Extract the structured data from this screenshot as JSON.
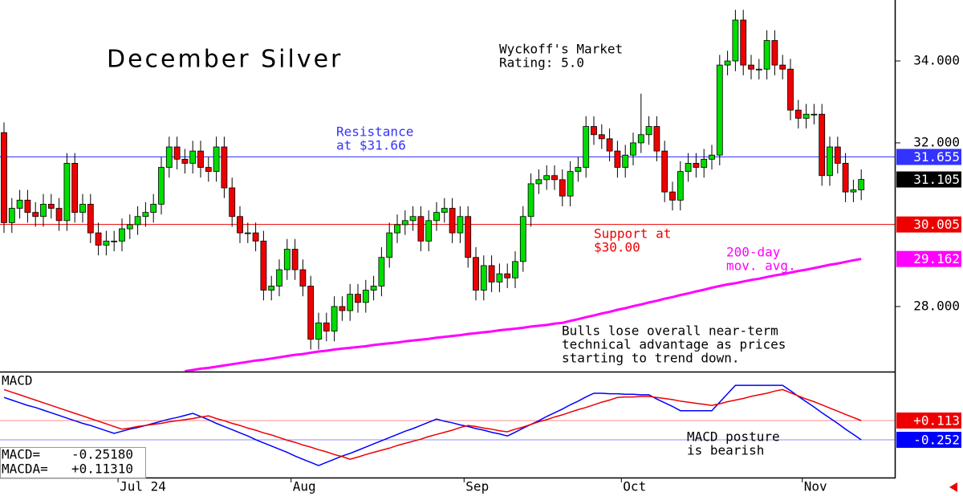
{
  "chart_data": [
    {
      "type": "candlestick",
      "title": "December Silver",
      "subtitle": [
        "Wyckoff's Market",
        "Rating: 5.0"
      ],
      "categories": [
        null,
        null,
        null,
        null,
        null,
        null,
        null,
        null,
        null,
        null,
        null,
        null,
        null,
        null,
        null,
        "Jul 24",
        null,
        null,
        null,
        null,
        null,
        null,
        null,
        null,
        null,
        null,
        null,
        null,
        null,
        null,
        null,
        null,
        null,
        null,
        null,
        null,
        null,
        "Aug",
        null,
        null,
        null,
        null,
        null,
        null,
        null,
        null,
        null,
        null,
        null,
        null,
        null,
        null,
        null,
        null,
        null,
        null,
        null,
        null,
        null,
        "Sep",
        null,
        null,
        null,
        null,
        null,
        null,
        null,
        null,
        null,
        null,
        null,
        null,
        null,
        null,
        null,
        null,
        null,
        null,
        null,
        "Oct",
        null,
        null,
        null,
        null,
        null,
        null,
        null,
        null,
        null,
        null,
        null,
        null,
        null,
        null,
        null,
        null,
        null,
        null,
        null,
        null,
        null,
        null,
        "Nov",
        null,
        null,
        null,
        null,
        null,
        null,
        null
      ],
      "open": [
        32.25,
        30.05,
        30.4,
        30.6,
        30.3,
        30.2,
        30.5,
        30.4,
        30.1,
        31.5,
        30.3,
        30.5,
        29.8,
        29.5,
        29.6,
        29.6,
        29.9,
        30.0,
        30.2,
        30.3,
        30.5,
        31.4,
        31.9,
        31.6,
        31.5,
        31.8,
        31.4,
        31.3,
        31.9,
        30.9,
        30.2,
        29.8,
        29.8,
        29.6,
        28.4,
        28.5,
        28.9,
        29.4,
        28.9,
        28.5,
        27.2,
        27.6,
        27.4,
        28.0,
        27.9,
        28.3,
        28.1,
        28.4,
        28.5,
        29.2,
        29.8,
        30.0,
        30.1,
        30.2,
        29.6,
        30.1,
        30.3,
        30.4,
        29.8,
        30.2,
        29.2,
        28.4,
        29.0,
        28.6,
        28.8,
        28.7,
        29.1,
        30.2,
        31.0,
        31.1,
        31.2,
        31.1,
        30.7,
        31.3,
        31.4,
        32.4,
        32.2,
        32.1,
        31.8,
        31.4,
        31.7,
        32.0,
        32.2,
        32.4,
        31.8,
        30.8,
        30.6,
        31.3,
        31.5,
        31.4,
        31.6,
        31.7,
        33.9,
        34.0,
        35.0,
        33.9,
        33.8,
        33.8,
        34.5,
        33.9,
        33.8,
        32.8,
        32.6,
        32.7,
        32.7,
        31.2,
        31.9,
        31.5,
        30.8,
        30.85
      ],
      "high": [
        32.5,
        30.65,
        30.85,
        30.85,
        30.55,
        30.75,
        30.75,
        30.65,
        31.75,
        31.75,
        30.75,
        30.75,
        30.05,
        29.85,
        29.85,
        30.15,
        30.25,
        30.45,
        30.55,
        30.75,
        31.65,
        32.15,
        32.15,
        31.85,
        32.05,
        32.05,
        31.65,
        32.15,
        32.15,
        31.15,
        30.45,
        30.05,
        30.05,
        29.85,
        28.75,
        29.15,
        29.65,
        29.65,
        29.15,
        28.75,
        27.85,
        27.85,
        28.25,
        28.25,
        28.55,
        28.55,
        28.65,
        28.75,
        29.45,
        30.05,
        30.25,
        30.35,
        30.45,
        30.45,
        30.35,
        30.55,
        30.65,
        30.65,
        30.45,
        30.45,
        29.45,
        29.25,
        29.25,
        29.05,
        29.05,
        29.35,
        30.45,
        31.25,
        31.35,
        31.45,
        31.45,
        31.35,
        31.55,
        31.65,
        32.65,
        32.65,
        32.45,
        32.35,
        32.05,
        31.95,
        32.25,
        33.2,
        32.65,
        32.65,
        32.05,
        31.05,
        31.55,
        31.75,
        31.75,
        31.85,
        31.95,
        34.15,
        34.25,
        35.25,
        35.25,
        34.15,
        34.05,
        34.75,
        34.75,
        34.15,
        34.05,
        33.05,
        32.95,
        32.95,
        32.95,
        32.15,
        32.15,
        31.75,
        31.1,
        31.35
      ],
      "low": [
        29.8,
        29.8,
        30.15,
        30.05,
        29.95,
        29.95,
        30.15,
        29.85,
        29.85,
        30.05,
        30.05,
        29.55,
        29.25,
        29.25,
        29.35,
        29.35,
        29.65,
        29.75,
        29.95,
        30.05,
        30.25,
        31.15,
        31.35,
        31.25,
        31.25,
        31.15,
        31.05,
        31.05,
        30.65,
        29.95,
        29.55,
        29.55,
        29.35,
        28.15,
        28.15,
        28.25,
        28.65,
        28.65,
        28.25,
        26.95,
        26.95,
        27.15,
        27.15,
        27.65,
        27.65,
        27.85,
        27.85,
        28.15,
        28.25,
        28.95,
        29.55,
        29.75,
        29.85,
        29.35,
        29.35,
        29.85,
        30.05,
        29.55,
        29.55,
        28.95,
        28.15,
        28.15,
        28.35,
        28.35,
        28.45,
        28.45,
        28.85,
        29.95,
        30.75,
        30.85,
        30.85,
        30.45,
        30.45,
        31.05,
        31.15,
        31.95,
        31.85,
        31.55,
        31.15,
        31.15,
        31.45,
        31.75,
        31.95,
        31.55,
        30.55,
        30.35,
        30.35,
        31.05,
        31.15,
        31.15,
        31.35,
        31.45,
        33.65,
        33.75,
        33.65,
        33.55,
        33.55,
        33.55,
        33.65,
        33.55,
        32.55,
        32.35,
        32.35,
        32.45,
        30.95,
        30.95,
        31.25,
        30.55,
        30.55,
        30.6
      ],
      "close": [
        30.05,
        30.4,
        30.6,
        30.3,
        30.2,
        30.5,
        30.4,
        30.1,
        31.5,
        30.3,
        30.5,
        29.8,
        29.5,
        29.6,
        29.6,
        29.9,
        30.0,
        30.2,
        30.3,
        30.5,
        31.4,
        31.9,
        31.6,
        31.5,
        31.8,
        31.4,
        31.3,
        31.9,
        30.9,
        30.2,
        29.8,
        29.8,
        29.6,
        28.4,
        28.5,
        28.9,
        29.4,
        28.9,
        28.5,
        27.2,
        27.6,
        27.4,
        28.0,
        27.9,
        28.3,
        28.1,
        28.4,
        28.5,
        29.2,
        29.8,
        30.0,
        30.1,
        30.2,
        29.6,
        30.1,
        30.3,
        30.4,
        29.8,
        30.2,
        29.2,
        28.4,
        29.0,
        28.6,
        28.8,
        28.7,
        29.1,
        30.2,
        31.0,
        31.1,
        31.2,
        31.1,
        30.7,
        31.3,
        31.4,
        32.4,
        32.2,
        32.1,
        31.8,
        31.4,
        31.7,
        32.0,
        32.2,
        32.4,
        31.8,
        30.8,
        30.6,
        31.3,
        31.5,
        31.4,
        31.6,
        31.7,
        33.9,
        34.0,
        35.0,
        33.9,
        33.8,
        33.8,
        34.5,
        33.9,
        33.8,
        32.8,
        32.6,
        32.7,
        32.7,
        31.2,
        31.9,
        31.5,
        30.8,
        30.85,
        31.105
      ],
      "up_color": "#00dd00",
      "down_color": "#ee0000",
      "series": [
        {
          "name": [
            "200-day",
            "mov. avg."
          ],
          "color": "#ff00ff",
          "values": [
            null,
            null,
            null,
            null,
            null,
            null,
            null,
            null,
            null,
            null,
            null,
            null,
            null,
            null,
            null,
            null,
            null,
            null,
            null,
            null,
            null,
            null,
            null,
            26.42,
            26.45,
            26.48,
            26.5,
            26.53,
            26.56,
            26.59,
            26.62,
            26.65,
            26.68,
            26.7,
            26.73,
            26.76,
            26.79,
            26.82,
            26.84,
            26.87,
            26.9,
            26.92,
            26.95,
            26.97,
            26.99,
            27.01,
            27.03,
            27.06,
            27.08,
            27.1,
            27.12,
            27.15,
            27.17,
            27.19,
            27.21,
            27.24,
            27.26,
            27.28,
            27.3,
            27.33,
            27.35,
            27.37,
            27.39,
            27.42,
            27.44,
            27.46,
            27.48,
            27.51,
            27.53,
            27.55,
            27.58,
            27.6,
            27.65,
            27.69,
            27.74,
            27.78,
            27.83,
            27.87,
            27.92,
            27.96,
            28.01,
            28.05,
            28.1,
            28.14,
            28.19,
            28.23,
            28.28,
            28.32,
            28.37,
            28.41,
            28.46,
            28.5,
            28.54,
            28.57,
            28.61,
            28.65,
            28.68,
            28.72,
            28.76,
            28.79,
            28.83,
            28.87,
            28.9,
            28.94,
            28.98,
            29.02,
            29.05,
            29.09,
            29.13,
            29.162
          ],
          "last_label": 29.162
        }
      ],
      "levels": [
        {
          "value": 31.655,
          "color": "#3333ff",
          "text": [
            "Resistance",
            "at $31.66"
          ]
        },
        {
          "value": 30.005,
          "color": "#ee0000",
          "text": [
            "Support at",
            "$30.00"
          ]
        }
      ],
      "last_price": {
        "value": 31.105,
        "color": "#000000"
      },
      "annotation": [
        "Bulls lose overall near-term",
        "technical advantage as prices",
        "starting to trend down."
      ],
      "ylim": [
        26.41,
        35.49
      ],
      "yticks": [
        {
          "value": 28,
          "label": "28.000"
        },
        {
          "value": 32,
          "label": "32.000"
        },
        {
          "value": 34,
          "label": "34.000"
        }
      ]
    },
    {
      "type": "line",
      "title": "MACD",
      "series": [
        {
          "name": "MACD=",
          "readout": "-0.25180",
          "color": "#0000ff",
          "last": {
            "value": -0.252,
            "label": "-0.252"
          },
          "values": [
            0.55,
            0.5,
            0.45,
            0.4,
            0.36,
            0.31,
            0.26,
            0.21,
            0.16,
            0.11,
            0.06,
            0.02,
            -0.03,
            -0.08,
            -0.13,
            -0.09,
            -0.05,
            -0.02,
            0.02,
            0.06,
            0.1,
            0.14,
            0.17,
            0.21,
            0.25,
            0.19,
            0.13,
            0.06,
            0,
            -0.06,
            -0.12,
            -0.18,
            -0.25,
            -0.31,
            -0.37,
            -0.43,
            -0.49,
            -0.56,
            -0.62,
            -0.68,
            -0.74,
            -0.68,
            -0.62,
            -0.56,
            -0.51,
            -0.45,
            -0.39,
            -0.33,
            -0.27,
            -0.21,
            -0.15,
            -0.09,
            -0.04,
            0.02,
            0.08,
            0.14,
            0.1,
            0.07,
            0.03,
            0,
            -0.04,
            -0.07,
            -0.11,
            -0.14,
            -0.18,
            -0.11,
            -0.03,
            0.04,
            0.11,
            0.19,
            0.26,
            0.33,
            0.41,
            0.48,
            0.56,
            0.63,
            0.63,
            0.62,
            0.62,
            0.61,
            0.61,
            0.6,
            0.6,
            0.52,
            0.45,
            0.38,
            0.3,
            0.3,
            0.3,
            0.3,
            0.3,
            0.46,
            0.62,
            0.78,
            0.78,
            0.78,
            0.78,
            0.78,
            0.78,
            0.78,
            0.68,
            0.57,
            0.47,
            0.37,
            0.26,
            0.16,
            0.06,
            -0.05,
            -0.15,
            -0.252
          ]
        },
        {
          "name": "MACDA=",
          "readout": "+0.11310",
          "color": "#ee0000",
          "last": {
            "value": 0.113,
            "label": "+0.113"
          },
          "values": [
            0.7,
            0.65,
            0.6,
            0.55,
            0.5,
            0.45,
            0.4,
            0.35,
            0.3,
            0.25,
            0.2,
            0.15,
            0.1,
            0.05,
            0,
            -0.05,
            -0.03,
            0,
            0.02,
            0.04,
            0.06,
            0.09,
            0.11,
            0.13,
            0.15,
            0.18,
            0.2,
            0.15,
            0.11,
            0.06,
            0.02,
            -0.03,
            -0.07,
            -0.12,
            -0.16,
            -0.21,
            -0.26,
            -0.3,
            -0.35,
            -0.39,
            -0.44,
            -0.48,
            -0.53,
            -0.57,
            -0.62,
            -0.58,
            -0.53,
            -0.49,
            -0.45,
            -0.41,
            -0.36,
            -0.32,
            -0.28,
            -0.24,
            -0.19,
            -0.15,
            -0.11,
            -0.07,
            -0.02,
            0.02,
            0,
            -0.03,
            -0.05,
            -0.08,
            -0.1,
            -0.05,
            -0.01,
            0.04,
            0.09,
            0.13,
            0.18,
            0.22,
            0.27,
            0.32,
            0.36,
            0.41,
            0.46,
            0.5,
            0.55,
            0.56,
            0.56,
            0.57,
            0.57,
            0.55,
            0.53,
            0.51,
            0.48,
            0.46,
            0.44,
            0.42,
            0.4,
            0.43,
            0.47,
            0.5,
            0.53,
            0.57,
            0.6,
            0.63,
            0.67,
            0.7,
            0.64,
            0.58,
            0.52,
            0.47,
            0.41,
            0.35,
            0.29,
            0.23,
            0.17,
            0.113
          ]
        }
      ],
      "annotation": [
        "MACD posture",
        "is bearish"
      ],
      "ylim": [
        -0.967,
        1.04
      ]
    }
  ]
}
